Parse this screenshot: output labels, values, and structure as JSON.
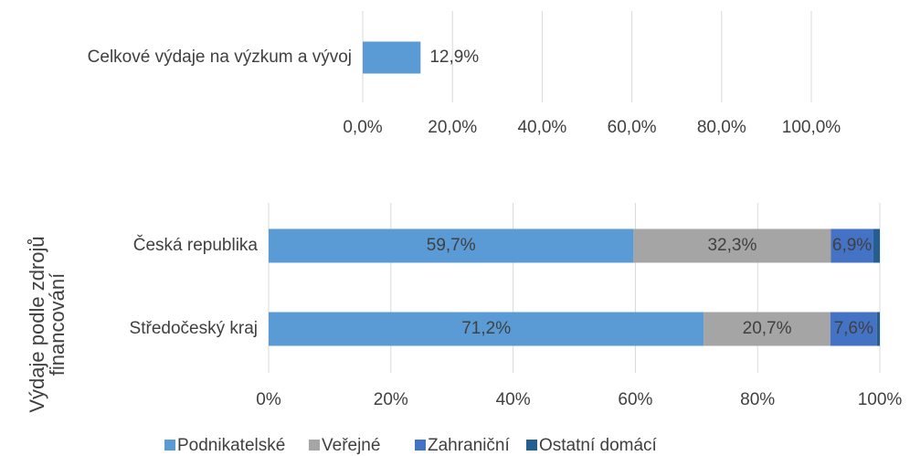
{
  "chart_data": [
    {
      "type": "bar",
      "orientation": "horizontal",
      "categories": [
        "Celkové výdaje na výzkum a vývoj"
      ],
      "values": [
        12.9
      ],
      "value_labels": [
        "12,9%"
      ],
      "color": "#5b9bd5",
      "xlim": [
        0,
        100
      ],
      "xticks": [
        {
          "value": 0,
          "label": "0,0%"
        },
        {
          "value": 20,
          "label": "20,0%"
        },
        {
          "value": 40,
          "label": "40,0%"
        },
        {
          "value": 60,
          "label": "60,0%"
        },
        {
          "value": 80,
          "label": "80,0%"
        },
        {
          "value": 100,
          "label": "100,0%"
        }
      ],
      "grid": true
    },
    {
      "type": "stacked_bar",
      "orientation": "horizontal",
      "ylabel": [
        "Výdaje podle zdrojů",
        "financování"
      ],
      "categories": [
        "Česká republika",
        "Středočeský kraj"
      ],
      "series": [
        {
          "name": "Podnikatelské",
          "color": "#5b9bd5",
          "values": [
            59.7,
            71.2
          ],
          "value_labels": [
            "59,7%",
            "71,2%"
          ]
        },
        {
          "name": "Veřejné",
          "color": "#a5a5a5",
          "values": [
            32.3,
            20.7
          ],
          "value_labels": [
            "32,3%",
            "20,7%"
          ]
        },
        {
          "name": "Zahraniční",
          "color": "#4472c4",
          "values": [
            6.9,
            7.6
          ],
          "value_labels": [
            "6,9%",
            "7,6%"
          ]
        },
        {
          "name": "Ostatní domácí",
          "color": "#255e91",
          "values": [
            1.1,
            0.5
          ]
        }
      ],
      "xlim": [
        0,
        100
      ],
      "xticks": [
        {
          "value": 0,
          "label": "0%"
        },
        {
          "value": 20,
          "label": "20%"
        },
        {
          "value": 40,
          "label": "40%"
        },
        {
          "value": 60,
          "label": "60%"
        },
        {
          "value": 80,
          "label": "80%"
        },
        {
          "value": 100,
          "label": "100%"
        }
      ],
      "grid": true,
      "legend": "bottom"
    }
  ]
}
